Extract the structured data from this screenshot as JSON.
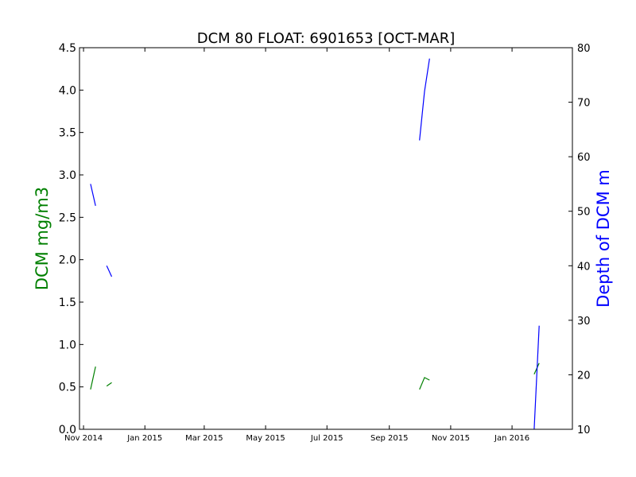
{
  "chart_data": {
    "type": "line",
    "title": "DCM 80 FLOAT: 6901653 [OCT-MAR]",
    "ylabel_left": "DCM mg/m3",
    "ylabel_right": "Depth of DCM m",
    "colors": {
      "left": "#008000",
      "right": "#0000ff"
    },
    "grid": false,
    "xlim": [
      "2014-10-28",
      "2016-03-01"
    ],
    "ylim_left": [
      0,
      4.5
    ],
    "ylim_right": [
      10,
      80
    ],
    "x_ticks": [
      {
        "date": "2014-11-01",
        "label": "Nov 2014"
      },
      {
        "date": "2015-01-01",
        "label": "Jan 2015"
      },
      {
        "date": "2015-03-01",
        "label": "Mar 2015"
      },
      {
        "date": "2015-05-01",
        "label": "May 2015"
      },
      {
        "date": "2015-07-01",
        "label": "Jul 2015"
      },
      {
        "date": "2015-09-01",
        "label": "Sep 2015"
      },
      {
        "date": "2015-11-01",
        "label": "Nov 2015"
      },
      {
        "date": "2016-01-01",
        "label": "Jan 2016"
      }
    ],
    "y_ticks_left": [
      "0.0",
      "0.5",
      "1.0",
      "1.5",
      "2.0",
      "2.5",
      "3.0",
      "3.5",
      "4.0",
      "4.5"
    ],
    "y_ticks_right": [
      "10",
      "20",
      "30",
      "40",
      "50",
      "60",
      "70",
      "80"
    ],
    "series": [
      {
        "axis": "left",
        "segments": [
          [
            {
              "x": "2014-11-08",
              "y": 0.47
            },
            {
              "x": "2014-11-13",
              "y": 0.74
            }
          ],
          [
            {
              "x": "2014-11-24",
              "y": 0.51
            },
            {
              "x": "2014-11-29",
              "y": 0.55
            }
          ],
          [
            {
              "x": "2015-10-01",
              "y": 0.47
            },
            {
              "x": "2015-10-06",
              "y": 0.61
            },
            {
              "x": "2015-10-11",
              "y": 0.58
            }
          ],
          [
            {
              "x": "2016-01-23",
              "y": 0.65
            },
            {
              "x": "2016-01-28",
              "y": 0.78
            }
          ]
        ]
      },
      {
        "axis": "right",
        "segments": [
          [
            {
              "x": "2014-11-08",
              "y": 55
            },
            {
              "x": "2014-11-13",
              "y": 51
            }
          ],
          [
            {
              "x": "2014-11-24",
              "y": 40
            },
            {
              "x": "2014-11-29",
              "y": 38
            }
          ],
          [
            {
              "x": "2015-10-01",
              "y": 63
            },
            {
              "x": "2015-10-06",
              "y": 72
            },
            {
              "x": "2015-10-11",
              "y": 78
            }
          ],
          [
            {
              "x": "2016-01-23",
              "y": 10
            },
            {
              "x": "2016-01-28",
              "y": 29
            }
          ]
        ]
      }
    ]
  }
}
